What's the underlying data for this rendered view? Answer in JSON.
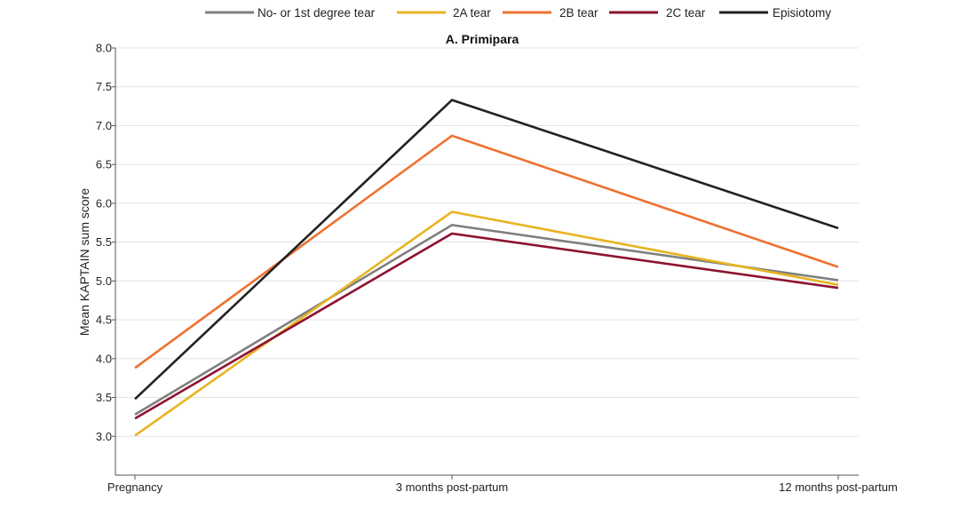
{
  "chart_data": {
    "type": "line",
    "title": "A. Primipara",
    "xlabel": "",
    "ylabel": "Mean KAPTAIN sum score",
    "categories": [
      "Pregnancy",
      "3 months post-partum",
      "12 months post-partum"
    ],
    "ylim": [
      2.5,
      8.0
    ],
    "yticks": [
      "3.0",
      "3.5",
      "4.0",
      "4.5",
      "5.0",
      "5.5",
      "6.0",
      "6.5",
      "7.0",
      "7.5",
      "8.0"
    ],
    "grid": true,
    "legend_position": "top",
    "series": [
      {
        "name": "No- or 1st degree tear",
        "color": "#7f7f7f",
        "values": [
          3.28,
          5.72,
          5.01
        ]
      },
      {
        "name": "2A tear",
        "color": "#e8b422",
        "values": [
          3.01,
          5.89,
          4.95
        ]
      },
      {
        "name": "2B tear",
        "color": "#ee7130",
        "values": [
          3.88,
          6.87,
          5.18
        ]
      },
      {
        "name": "2C tear",
        "color": "#8e1230",
        "values": [
          3.23,
          5.61,
          4.91
        ]
      },
      {
        "name": "Episiotomy",
        "color": "#222222",
        "values": [
          3.48,
          7.33,
          5.68
        ]
      }
    ]
  }
}
